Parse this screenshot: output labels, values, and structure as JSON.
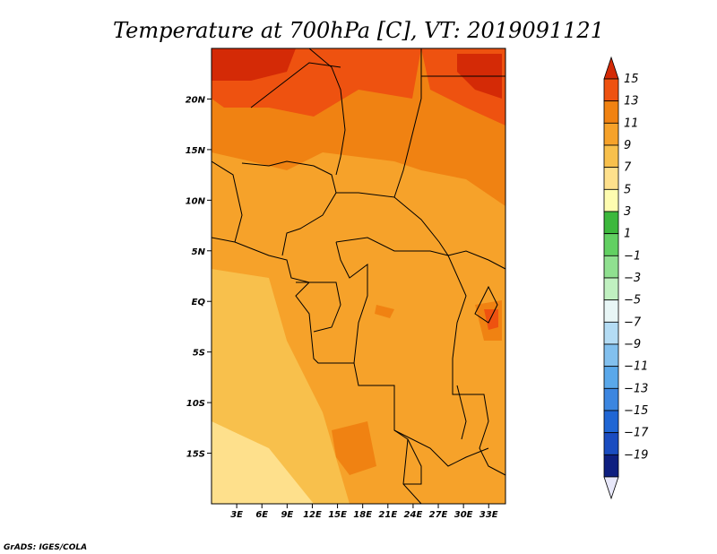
{
  "map": {
    "title": "Temperature at 700hPa [C], VT: 2019091121",
    "credit": "GrADS: IGES/COLA",
    "lat_labels": [
      "20N",
      "15N",
      "10N",
      "5N",
      "EQ",
      "5S",
      "10S",
      "15S"
    ],
    "lat_values": [
      20,
      15,
      10,
      5,
      0,
      -5,
      -10,
      -15
    ],
    "lon_labels": [
      "3E",
      "6E",
      "9E",
      "12E",
      "15E",
      "18E",
      "21E",
      "24E",
      "27E",
      "30E",
      "33E"
    ],
    "lon_values": [
      3,
      6,
      9,
      12,
      15,
      18,
      21,
      24,
      27,
      30,
      33
    ],
    "extent": {
      "lon_min": 0,
      "lon_max": 35,
      "lat_min": -20,
      "lat_max": 25
    }
  },
  "colorbar": {
    "labels": [
      "15",
      "13",
      "11",
      "9",
      "7",
      "5",
      "3",
      "1",
      "−1",
      "−3",
      "−5",
      "−7",
      "−9",
      "−11",
      "−13",
      "−15",
      "−17",
      "−19"
    ],
    "colors": [
      "#d42a06",
      "#ee5210",
      "#f08212",
      "#f6a22a",
      "#f8c04c",
      "#fee08c",
      "#fefcb0",
      "#3cb83c",
      "#62d062",
      "#90e090",
      "#c0f0c0",
      "#e8f6f6",
      "#b4dcf4",
      "#82c0ee",
      "#5aa8ea",
      "#3c86e0",
      "#2066d4",
      "#1a4cc0",
      "#0e1f80",
      "#e8e8fa"
    ]
  }
}
